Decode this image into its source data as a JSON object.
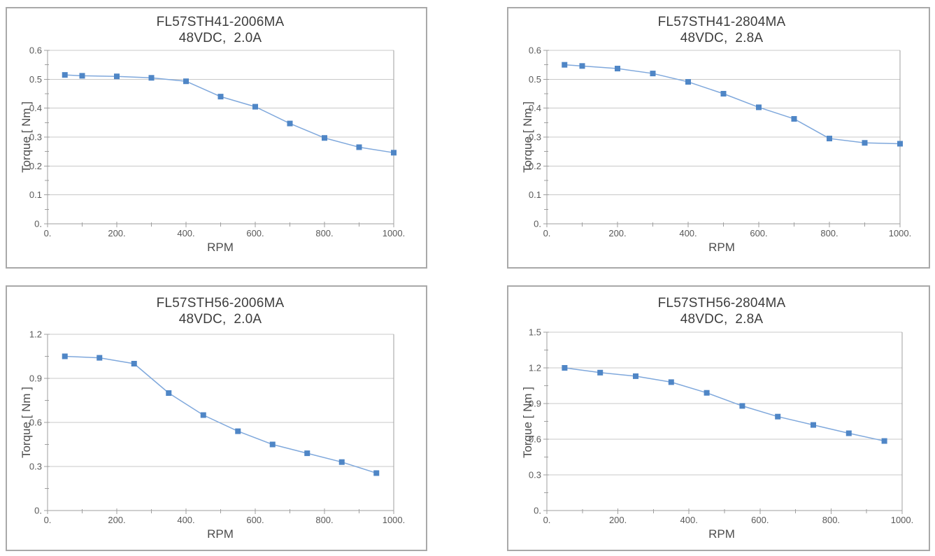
{
  "styles": {
    "panel_border": "#a9a9a9",
    "grid_color": "#c8c8c8",
    "axis_color": "#9f9f9f",
    "tick_label_color": "#595959",
    "axis_title_color": "#4d4d4d",
    "title_color": "#3d3d3d",
    "line_color": "#7fa8dc",
    "marker_color": "#4f86c6"
  },
  "chart_data": [
    {
      "type": "line",
      "title": "FL57STH41-2006MA",
      "subtitle": "48VDC,  2.0A",
      "xlabel": "RPM",
      "ylabel": "Torque [ Nm ]",
      "xlim": [
        0,
        1000
      ],
      "ylim": [
        0,
        0.6
      ],
      "x_ticks": [
        0,
        200,
        400,
        600,
        800,
        1000
      ],
      "x_tick_labels": [
        "0.",
        "200.",
        "400.",
        "600.",
        "800.",
        "1000."
      ],
      "x_minor_step": 100,
      "y_ticks": [
        0,
        0.1,
        0.2,
        0.3,
        0.4,
        0.5,
        0.6
      ],
      "y_tick_labels": [
        "0.",
        "0.1",
        "0.2",
        "0.3",
        "0.4",
        "0.5",
        "0.6"
      ],
      "y_minor_step": 0.05,
      "grid": "horizontal",
      "legend": "none",
      "x": [
        50,
        100,
        200,
        300,
        400,
        500,
        600,
        700,
        800,
        900,
        1000
      ],
      "y": [
        0.515,
        0.512,
        0.51,
        0.505,
        0.493,
        0.44,
        0.405,
        0.347,
        0.297,
        0.265,
        0.246
      ]
    },
    {
      "type": "line",
      "title": "FL57STH41-2804MA",
      "subtitle": "48VDC,  2.8A",
      "xlabel": "RPM",
      "ylabel": "Torque [ Nm ]",
      "xlim": [
        0,
        1000
      ],
      "ylim": [
        0,
        0.6
      ],
      "x_ticks": [
        0,
        200,
        400,
        600,
        800,
        1000
      ],
      "x_tick_labels": [
        "0.",
        "200.",
        "400.",
        "600.",
        "800.",
        "1000."
      ],
      "x_minor_step": 100,
      "y_ticks": [
        0,
        0.1,
        0.2,
        0.3,
        0.4,
        0.5,
        0.6
      ],
      "y_tick_labels": [
        "0.",
        "0.1",
        "0.2",
        "0.3",
        "0.4",
        "0.5",
        "0.6"
      ],
      "y_minor_step": 0.05,
      "grid": "horizontal",
      "legend": "none",
      "x": [
        50,
        100,
        200,
        300,
        400,
        500,
        600,
        700,
        800,
        900,
        1000
      ],
      "y": [
        0.55,
        0.546,
        0.537,
        0.52,
        0.491,
        0.45,
        0.403,
        0.363,
        0.295,
        0.28,
        0.277
      ]
    },
    {
      "type": "line",
      "title": "FL57STH56-2006MA",
      "subtitle": "48VDC,  2.0A",
      "xlabel": "RPM",
      "ylabel": "Torque [ Nm ]",
      "xlim": [
        0,
        1000
      ],
      "ylim": [
        0,
        1.2
      ],
      "x_ticks": [
        0,
        200,
        400,
        600,
        800,
        1000
      ],
      "x_tick_labels": [
        "0.",
        "200.",
        "400.",
        "600.",
        "800.",
        "1000."
      ],
      "x_minor_step": 100,
      "y_ticks": [
        0,
        0.3,
        0.6,
        0.9,
        1.2
      ],
      "y_tick_labels": [
        "0.",
        "0.3",
        "0.6",
        "0.9",
        "1.2"
      ],
      "y_minor_step": 0.15,
      "grid": "horizontal",
      "legend": "none",
      "x": [
        50,
        150,
        250,
        350,
        450,
        550,
        650,
        750,
        850,
        950
      ],
      "y": [
        1.05,
        1.04,
        1.0,
        0.8,
        0.65,
        0.54,
        0.45,
        0.39,
        0.33,
        0.255
      ]
    },
    {
      "type": "line",
      "title": "FL57STH56-2804MA",
      "subtitle": "48VDC,  2.8A",
      "xlabel": "RPM",
      "ylabel": "Torque [ Nm ]",
      "xlim": [
        0,
        1000
      ],
      "ylim": [
        0,
        1.5
      ],
      "x_ticks": [
        0,
        200,
        400,
        600,
        800,
        1000
      ],
      "x_tick_labels": [
        "0.",
        "200.",
        "400.",
        "600.",
        "800.",
        "1000."
      ],
      "x_minor_step": 100,
      "y_ticks": [
        0,
        0.3,
        0.6,
        0.9,
        1.2,
        1.5
      ],
      "y_tick_labels": [
        "0.",
        "0.3",
        "0.6",
        "0.9",
        "1.2",
        "1.5"
      ],
      "y_minor_step": 0.15,
      "grid": "horizontal",
      "legend": "none",
      "x": [
        50,
        150,
        250,
        350,
        450,
        550,
        650,
        750,
        850,
        950
      ],
      "y": [
        1.2,
        1.16,
        1.13,
        1.08,
        0.99,
        0.88,
        0.79,
        0.72,
        0.65,
        0.585
      ]
    }
  ]
}
